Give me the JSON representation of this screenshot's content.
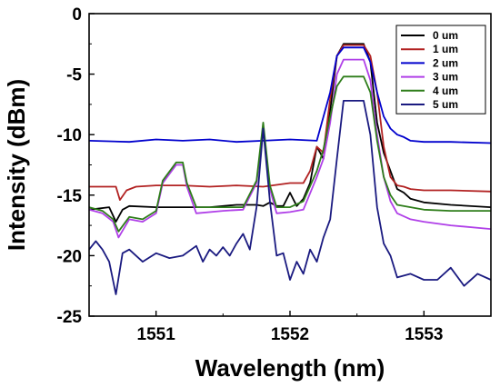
{
  "chart_data": {
    "type": "line",
    "xlabel": "Wavelength (nm)",
    "ylabel": "Intensity (dBm)",
    "xlim": [
      1550.5,
      1553.5
    ],
    "ylim": [
      -25,
      0
    ],
    "xticks": [
      1551,
      1552,
      1553
    ],
    "yticks": [
      0,
      -5,
      -10,
      -15,
      -20,
      -25
    ],
    "grid": false,
    "legend_position": "top-right",
    "series": [
      {
        "name": "0 um",
        "color": "#000000",
        "x": [
          1550.5,
          1550.65,
          1550.7,
          1550.75,
          1550.8,
          1551.0,
          1551.2,
          1551.4,
          1551.6,
          1551.75,
          1551.8,
          1551.85,
          1551.9,
          1551.95,
          1552.0,
          1552.05,
          1552.1,
          1552.15,
          1552.2,
          1552.25,
          1552.3,
          1552.35,
          1552.4,
          1552.55,
          1552.6,
          1552.65,
          1552.7,
          1552.75,
          1552.8,
          1552.85,
          1552.9,
          1553.0,
          1553.2,
          1553.5
        ],
        "y": [
          -16.2,
          -16.0,
          -17.2,
          -16.2,
          -15.9,
          -16.0,
          -16.0,
          -16.0,
          -15.8,
          -15.8,
          -15.9,
          -15.6,
          -15.9,
          -15.9,
          -14.8,
          -15.9,
          -15.3,
          -14.0,
          -11.0,
          -12.0,
          -8.0,
          -3.5,
          -2.5,
          -2.5,
          -4.0,
          -9.0,
          -11.5,
          -13.0,
          -14.5,
          -14.8,
          -15.3,
          -15.6,
          -15.8,
          -16.0
        ]
      },
      {
        "name": "1 um",
        "color": "#b22222",
        "x": [
          1550.5,
          1550.7,
          1550.73,
          1550.78,
          1550.85,
          1551.0,
          1551.2,
          1551.4,
          1551.6,
          1551.8,
          1552.0,
          1552.1,
          1552.15,
          1552.2,
          1552.25,
          1552.3,
          1552.35,
          1552.4,
          1552.55,
          1552.6,
          1552.65,
          1552.7,
          1552.75,
          1552.8,
          1552.85,
          1552.9,
          1553.0,
          1553.2,
          1553.5
        ],
        "y": [
          -14.3,
          -14.3,
          -15.4,
          -14.6,
          -14.3,
          -14.2,
          -14.2,
          -14.3,
          -14.2,
          -14.3,
          -14.0,
          -14.0,
          -13.0,
          -11.0,
          -11.5,
          -7.0,
          -3.5,
          -2.6,
          -2.6,
          -3.5,
          -6.5,
          -11.0,
          -13.5,
          -14.2,
          -14.3,
          -14.5,
          -14.6,
          -14.6,
          -14.7
        ]
      },
      {
        "name": "2 um",
        "color": "#0000cd",
        "x": [
          1550.5,
          1550.8,
          1551.0,
          1551.2,
          1551.4,
          1551.6,
          1551.8,
          1552.0,
          1552.2,
          1552.3,
          1552.35,
          1552.4,
          1552.55,
          1552.6,
          1552.65,
          1552.7,
          1552.75,
          1552.8,
          1552.85,
          1552.9,
          1553.0,
          1553.2,
          1553.5
        ],
        "y": [
          -10.5,
          -10.6,
          -10.4,
          -10.5,
          -10.4,
          -10.6,
          -10.5,
          -10.4,
          -10.5,
          -6.5,
          -3.5,
          -2.8,
          -2.8,
          -4.0,
          -6.5,
          -8.5,
          -9.5,
          -10.0,
          -10.2,
          -10.5,
          -10.6,
          -10.6,
          -10.7
        ]
      },
      {
        "name": "3 um",
        "color": "#b040e8",
        "x": [
          1550.5,
          1550.6,
          1550.68,
          1550.72,
          1550.8,
          1550.9,
          1551.0,
          1551.05,
          1551.15,
          1551.2,
          1551.23,
          1551.3,
          1551.5,
          1551.65,
          1551.75,
          1551.8,
          1551.85,
          1551.9,
          1552.0,
          1552.1,
          1552.2,
          1552.25,
          1552.3,
          1552.35,
          1552.4,
          1552.55,
          1552.6,
          1552.65,
          1552.7,
          1552.75,
          1552.8,
          1552.9,
          1553.0,
          1553.2,
          1553.5
        ],
        "y": [
          -16.2,
          -16.5,
          -17.2,
          -18.5,
          -17.0,
          -17.2,
          -16.5,
          -14.0,
          -12.5,
          -12.5,
          -14.3,
          -16.5,
          -16.3,
          -16.2,
          -14.0,
          -9.3,
          -14.5,
          -16.5,
          -16.4,
          -16.2,
          -13.5,
          -12.0,
          -9.0,
          -5.0,
          -3.8,
          -3.8,
          -5.5,
          -10.0,
          -13.5,
          -15.5,
          -16.5,
          -17.0,
          -17.2,
          -17.5,
          -17.8
        ]
      },
      {
        "name": "4 um",
        "color": "#2e7d1a",
        "x": [
          1550.5,
          1550.6,
          1550.68,
          1550.72,
          1550.8,
          1550.9,
          1551.0,
          1551.05,
          1551.15,
          1551.2,
          1551.23,
          1551.3,
          1551.5,
          1551.65,
          1551.75,
          1551.8,
          1551.85,
          1551.9,
          1552.0,
          1552.1,
          1552.2,
          1552.25,
          1552.3,
          1552.35,
          1552.4,
          1552.55,
          1552.6,
          1552.65,
          1552.7,
          1552.75,
          1552.8,
          1552.9,
          1553.0,
          1553.2,
          1553.5
        ],
        "y": [
          -16.0,
          -16.3,
          -17.0,
          -18.0,
          -16.8,
          -17.0,
          -16.3,
          -13.8,
          -12.3,
          -12.3,
          -14.0,
          -16.0,
          -16.0,
          -16.0,
          -13.8,
          -9.0,
          -14.2,
          -16.0,
          -16.0,
          -15.5,
          -13.0,
          -11.2,
          -8.5,
          -6.0,
          -5.2,
          -5.2,
          -6.5,
          -10.5,
          -13.5,
          -15.0,
          -15.8,
          -16.0,
          -16.2,
          -16.3,
          -16.3
        ]
      },
      {
        "name": "5 um",
        "color": "#1a1a80",
        "x": [
          1550.5,
          1550.55,
          1550.6,
          1550.65,
          1550.7,
          1550.75,
          1550.8,
          1550.9,
          1551.0,
          1551.1,
          1551.2,
          1551.3,
          1551.35,
          1551.4,
          1551.45,
          1551.5,
          1551.55,
          1551.6,
          1551.65,
          1551.7,
          1551.75,
          1551.8,
          1551.85,
          1551.9,
          1551.95,
          1552.0,
          1552.05,
          1552.1,
          1552.15,
          1552.2,
          1552.25,
          1552.3,
          1552.35,
          1552.4,
          1552.55,
          1552.6,
          1552.65,
          1552.7,
          1552.75,
          1552.8,
          1552.9,
          1553.0,
          1553.1,
          1553.2,
          1553.3,
          1553.4,
          1553.5
        ],
        "y": [
          -19.5,
          -18.8,
          -19.5,
          -20.5,
          -23.2,
          -19.8,
          -19.5,
          -20.5,
          -19.8,
          -20.2,
          -20.0,
          -19.2,
          -20.5,
          -19.5,
          -20.0,
          -19.3,
          -20.0,
          -19.0,
          -18.2,
          -19.5,
          -16.0,
          -9.5,
          -15.5,
          -20.0,
          -19.8,
          -22.0,
          -20.5,
          -21.5,
          -19.5,
          -20.5,
          -18.5,
          -17.0,
          -12.0,
          -7.2,
          -7.2,
          -10.0,
          -16.0,
          -19.0,
          -20.0,
          -21.8,
          -21.5,
          -22.0,
          -22.0,
          -21.0,
          -22.5,
          -21.5,
          -22.0
        ]
      }
    ]
  }
}
